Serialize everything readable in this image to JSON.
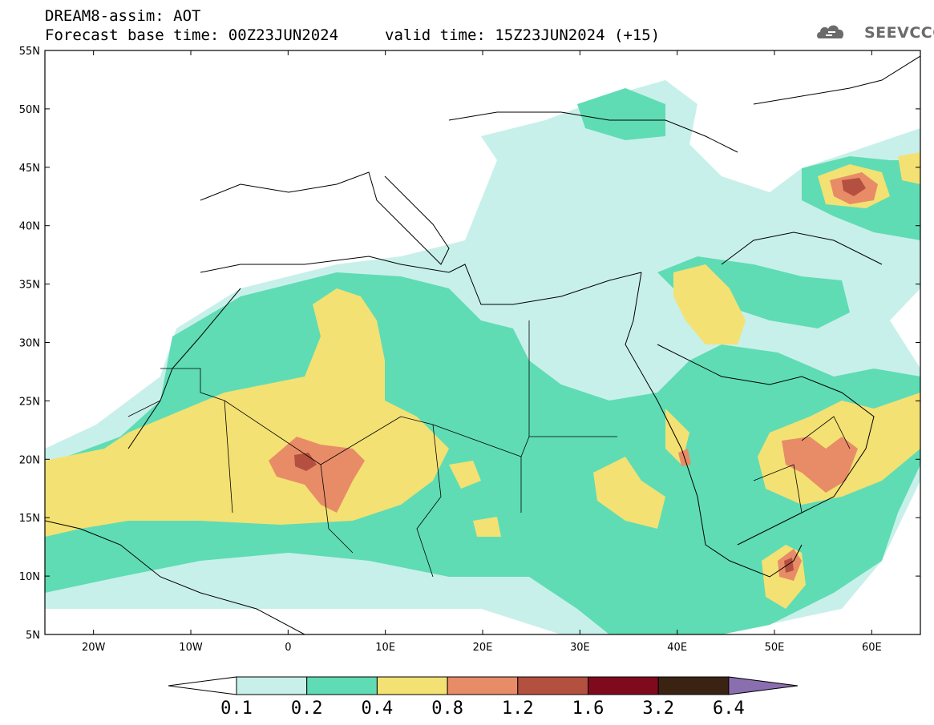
{
  "header": {
    "title": "DREAM8-assim: AOT",
    "base_time": "Forecast base time: 00Z23JUN2024",
    "valid_time": "valid time: 15Z23JUN2024 (+15)",
    "logo": "SEEVCCC"
  },
  "map": {
    "lon_range": [
      -25,
      65
    ],
    "lat_range": [
      5,
      55
    ],
    "lat_labels": [
      "55N",
      "50N",
      "45N",
      "40N",
      "35N",
      "30N",
      "25N",
      "20N",
      "15N",
      "10N",
      "5N"
    ],
    "lon_labels": [
      "20W",
      "10W",
      "0",
      "10E",
      "20E",
      "30E",
      "40E",
      "50E",
      "60E"
    ]
  },
  "colorbar": {
    "levels": [
      "0.1",
      "0.2",
      "0.4",
      "0.8",
      "1.2",
      "1.6",
      "3.2",
      "6.4"
    ],
    "colors": [
      "#ffffff",
      "#c8f0ea",
      "#5fdcb4",
      "#f4e173",
      "#e88c68",
      "#b4503f",
      "#7f0a1e",
      "#3b2313",
      "#8a6fb0"
    ]
  },
  "colors": {
    "class1": "#c8f0ea",
    "class2": "#5fdcb4",
    "class3": "#f4e173",
    "class4": "#e88c68",
    "class5": "#b4503f",
    "border": "#000000"
  }
}
